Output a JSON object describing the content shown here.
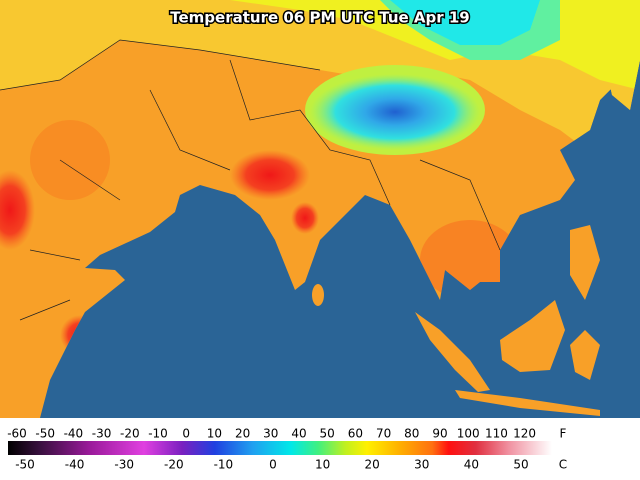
{
  "title": "Temperature 06 PM UTC Tue Apr 19",
  "legend": {
    "fahrenheit_labels": [
      -60,
      -50,
      -40,
      -30,
      -20,
      -10,
      0,
      10,
      20,
      30,
      40,
      50,
      60,
      70,
      80,
      90,
      100,
      110,
      120
    ],
    "fahrenheit_unit": "F",
    "celsius_labels": [
      -50,
      -40,
      -30,
      -20,
      -10,
      0,
      10,
      20,
      30,
      40,
      50
    ],
    "celsius_unit": "C"
  }
}
